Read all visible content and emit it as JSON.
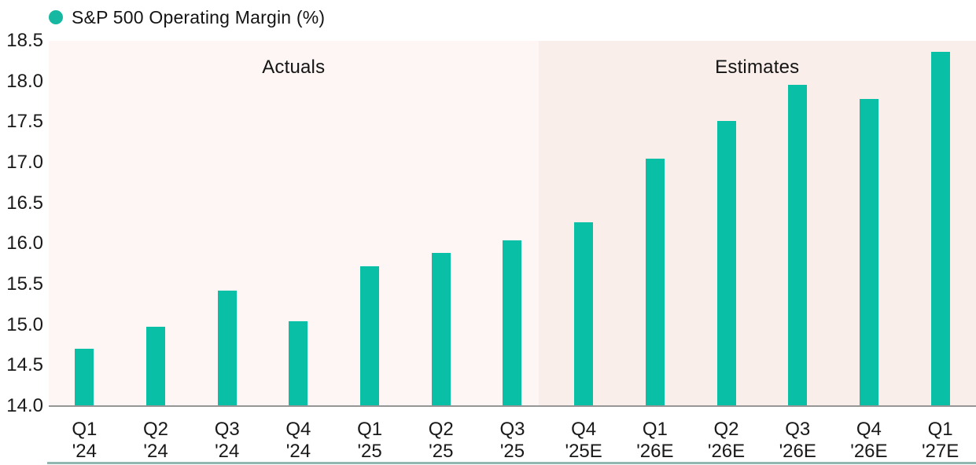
{
  "legend": {
    "label": "S&P 500 Operating Margin (%)"
  },
  "chart_data": {
    "type": "bar",
    "title": "S&P 500 Operating Margin (%)",
    "xlabel": "",
    "ylabel": "",
    "ylim": [
      14.0,
      18.5
    ],
    "ytick_step": 0.5,
    "yticks": [
      "18.5",
      "18.0",
      "17.5",
      "17.0",
      "16.5",
      "16.0",
      "15.5",
      "15.0",
      "14.5",
      "14.0"
    ],
    "grid": false,
    "legend_position": "top-left",
    "categories": [
      [
        "Q1",
        "'24"
      ],
      [
        "Q2",
        "'24"
      ],
      [
        "Q3",
        "'24"
      ],
      [
        "Q4",
        "'24"
      ],
      [
        "Q1",
        "'25"
      ],
      [
        "Q2",
        "'25"
      ],
      [
        "Q3",
        "'25"
      ],
      [
        "Q4",
        "'25E"
      ],
      [
        "Q1",
        "'26E"
      ],
      [
        "Q2",
        "'26E"
      ],
      [
        "Q3",
        "'26E"
      ],
      [
        "Q4",
        "'26E"
      ],
      [
        "Q1",
        "'27E"
      ]
    ],
    "values": [
      14.7,
      14.97,
      15.41,
      15.03,
      15.71,
      15.87,
      16.03,
      16.25,
      17.03,
      17.5,
      17.94,
      17.77,
      18.35
    ],
    "sections": [
      {
        "label": "Actuals",
        "columns": 7,
        "width_pct": 52.8,
        "bg": "#fdf6f4"
      },
      {
        "label": "Estimates",
        "columns": 6,
        "width_pct": 47.2,
        "bg": "#f9eeea"
      }
    ]
  },
  "colors": {
    "bar": "#09c0a7",
    "legend_dot": "#16b8a2",
    "actuals_bg": "#fdf6f4",
    "estimates_bg": "#f9eeea",
    "axis_line": "#969696",
    "text": "#191919",
    "bottom_strip": "#7fa9a3"
  }
}
